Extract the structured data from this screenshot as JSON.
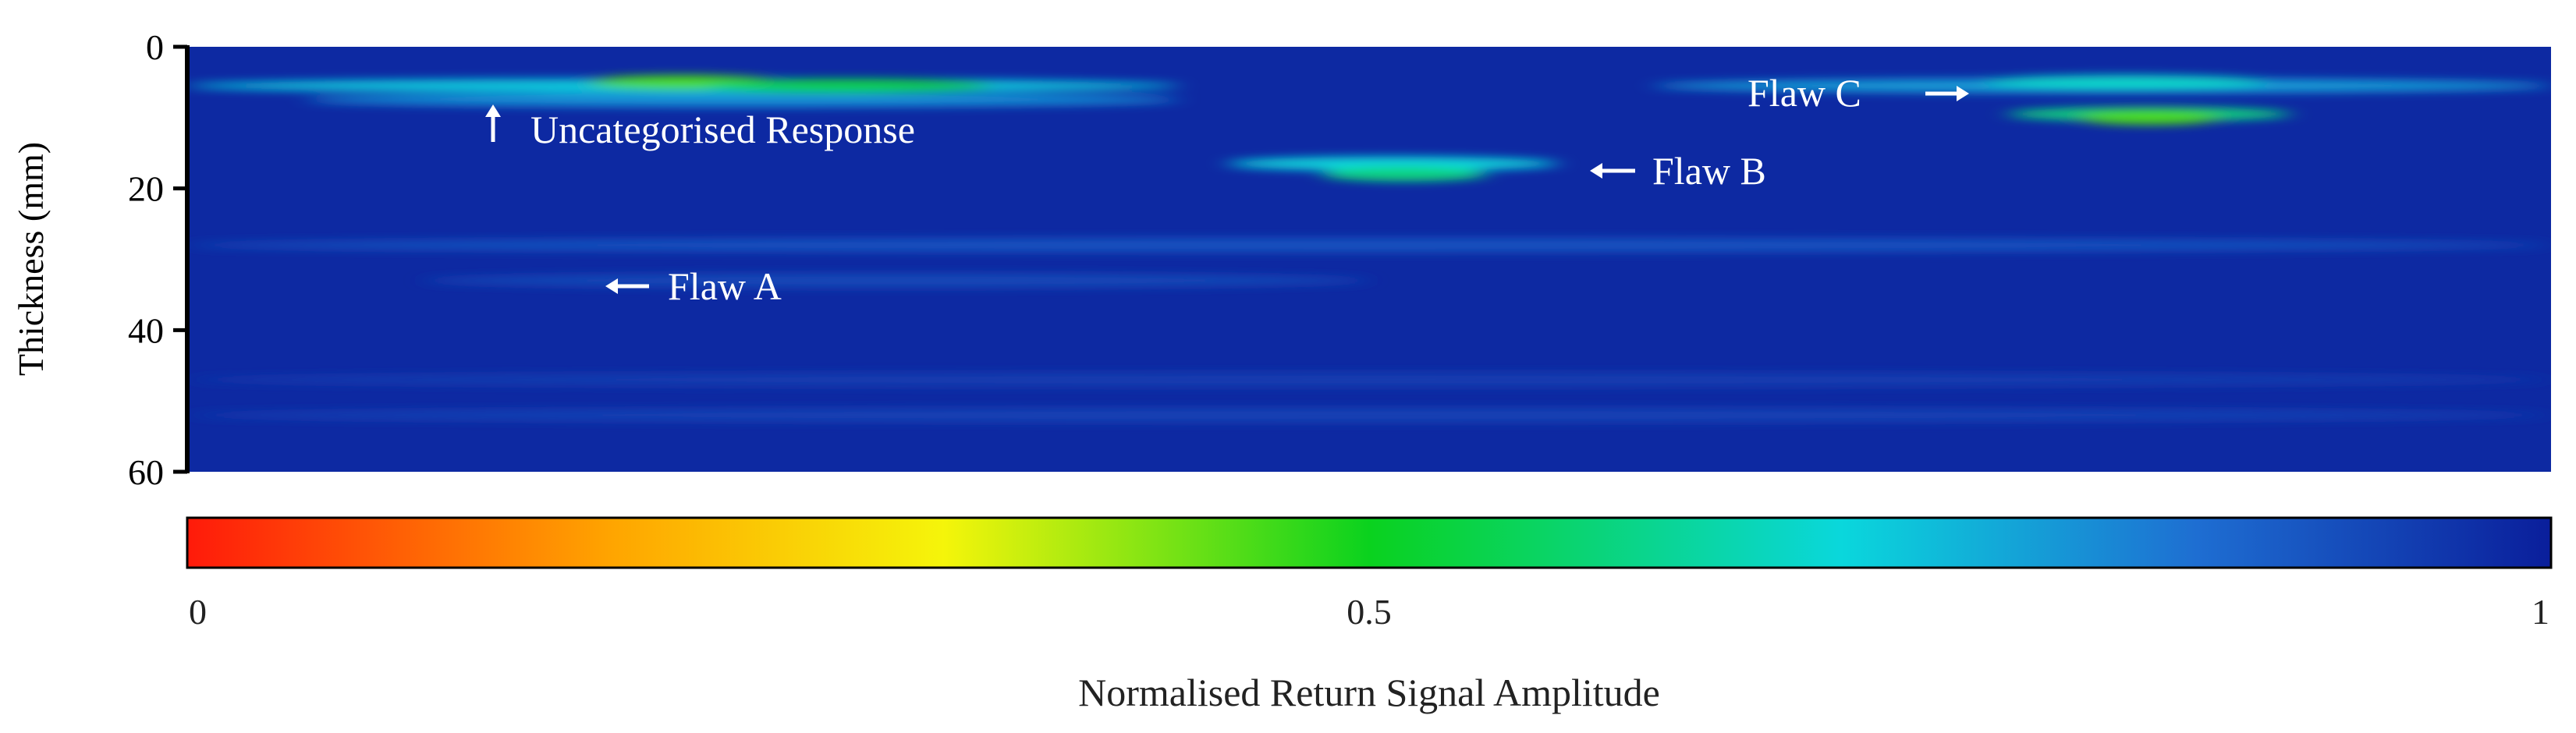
{
  "chart_data": {
    "type": "heatmap",
    "title": "",
    "ylabel": "Thickness (mm)",
    "ylim": [
      0,
      60
    ],
    "y_inverted": true,
    "y_ticks": [
      0,
      20,
      40,
      60
    ],
    "x_ticks": [],
    "xlabel": "",
    "grid": false,
    "background_value": 0.98,
    "colormap": {
      "label": "Normalised Return Signal Amplitude",
      "range": [
        0,
        1
      ],
      "ticks": [
        {
          "value": 0,
          "label": "0"
        },
        {
          "value": 0.5,
          "label": "0.5"
        },
        {
          "value": 1,
          "label": "1"
        }
      ],
      "stops": [
        {
          "value": 0.0,
          "color": "#ff1a0a"
        },
        {
          "value": 0.18,
          "color": "#ffa500"
        },
        {
          "value": 0.32,
          "color": "#f5f50a"
        },
        {
          "value": 0.5,
          "color": "#0ad21e"
        },
        {
          "value": 0.7,
          "color": "#0ad7dc"
        },
        {
          "value": 0.85,
          "color": "#1e6ed2"
        },
        {
          "value": 1.0,
          "color": "#0a1e9b"
        }
      ]
    },
    "features": [
      {
        "x0": 0.0,
        "x1": 0.42,
        "depth": 5.5,
        "value": 0.72
      },
      {
        "x0": 0.05,
        "x1": 0.42,
        "depth": 7.5,
        "value": 0.8
      },
      {
        "x0": 0.17,
        "x1": 0.25,
        "depth": 5.0,
        "value": 0.45
      },
      {
        "x0": 0.22,
        "x1": 0.34,
        "depth": 5.5,
        "value": 0.55
      },
      {
        "x0": 0.44,
        "x1": 0.58,
        "depth": 16.5,
        "value": 0.7
      },
      {
        "x0": 0.48,
        "x1": 0.55,
        "depth": 18.0,
        "value": 0.6
      },
      {
        "x0": 0.62,
        "x1": 1.0,
        "depth": 5.5,
        "value": 0.78
      },
      {
        "x0": 0.76,
        "x1": 0.88,
        "depth": 5.0,
        "value": 0.68
      },
      {
        "x0": 0.77,
        "x1": 0.89,
        "depth": 9.5,
        "value": 0.6
      },
      {
        "x0": 0.8,
        "x1": 0.86,
        "depth": 10.0,
        "value": 0.45
      },
      {
        "x0": 0.0,
        "x1": 1.0,
        "depth": 28.0,
        "value": 0.9
      },
      {
        "x0": 0.1,
        "x1": 0.5,
        "depth": 33.0,
        "value": 0.92
      },
      {
        "x0": 0.0,
        "x1": 1.0,
        "depth": 47.0,
        "value": 0.94
      },
      {
        "x0": 0.0,
        "x1": 1.0,
        "depth": 52.0,
        "value": 0.93
      }
    ],
    "annotations": [
      {
        "text": "Uncategorised Response",
        "arrow": "up"
      },
      {
        "text": "Flaw A",
        "arrow": "left"
      },
      {
        "text": "Flaw B",
        "arrow": "left"
      },
      {
        "text": "Flaw C",
        "arrow": "right"
      }
    ]
  }
}
